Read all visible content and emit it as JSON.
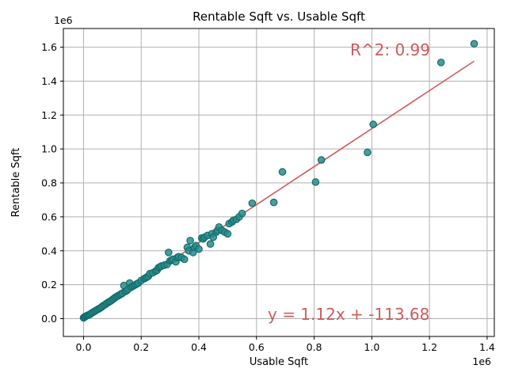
{
  "chart_data": {
    "type": "scatter",
    "title": "Rentable Sqft vs. Usable Sqft",
    "xlabel": "Usable Sqft",
    "ylabel": "Rentable Sqft",
    "x_offset_label": "1e6",
    "y_offset_label": "1e6",
    "xlim": [
      -70000,
      1425000
    ],
    "ylim": [
      -105000,
      1710000
    ],
    "x_ticks": [
      0,
      200000,
      400000,
      600000,
      800000,
      1000000,
      1200000,
      1400000
    ],
    "x_tick_labels": [
      "0.0",
      "0.2",
      "0.4",
      "0.6",
      "0.8",
      "1.0",
      "1.2",
      "1.4"
    ],
    "y_ticks": [
      0,
      200000,
      400000,
      600000,
      800000,
      1000000,
      1200000,
      1400000,
      1600000
    ],
    "y_tick_labels": [
      "0.0",
      "0.2",
      "0.4",
      "0.6",
      "0.8",
      "1.0",
      "1.2",
      "1.4",
      "1.6"
    ],
    "grid": true,
    "colors": {
      "point_fill": "#2e8b8b",
      "point_edge": "#0f6e6e",
      "fit_line": "#cd5c5c",
      "annotation": "#cd5c5c",
      "grid": "#b0b0b0"
    },
    "points": {
      "x": [
        0,
        3000,
        6000,
        9000,
        12000,
        15000,
        18000,
        22000,
        26000,
        30000,
        35000,
        40000,
        45000,
        50000,
        55000,
        60000,
        65000,
        70000,
        75000,
        80000,
        85000,
        90000,
        95000,
        100000,
        105000,
        110000,
        115000,
        120000,
        125000,
        130000,
        135000,
        140000,
        145000,
        150000,
        155000,
        160000,
        165000,
        170000,
        175000,
        180000,
        185000,
        190000,
        200000,
        210000,
        215000,
        220000,
        225000,
        230000,
        240000,
        250000,
        255000,
        260000,
        265000,
        270000,
        280000,
        290000,
        295000,
        300000,
        305000,
        310000,
        320000,
        325000,
        330000,
        340000,
        350000,
        360000,
        365000,
        370000,
        380000,
        385000,
        390000,
        400000,
        410000,
        415000,
        420000,
        430000,
        440000,
        445000,
        450000,
        460000,
        465000,
        470000,
        480000,
        490000,
        500000,
        505000,
        515000,
        520000,
        530000,
        540000,
        550000,
        585000,
        660000,
        690000,
        805000,
        825000,
        985000,
        1005000,
        1240000,
        1355000
      ],
      "y": [
        5000,
        10000,
        12000,
        15000,
        18000,
        20000,
        22000,
        25000,
        30000,
        35000,
        40000,
        45000,
        50000,
        55000,
        60000,
        65000,
        72000,
        78000,
        83000,
        90000,
        95000,
        100000,
        105000,
        112000,
        118000,
        125000,
        130000,
        135000,
        140000,
        145000,
        150000,
        195000,
        160000,
        165000,
        175000,
        210000,
        185000,
        190000,
        195000,
        200000,
        205000,
        210000,
        225000,
        235000,
        240000,
        245000,
        250000,
        265000,
        270000,
        280000,
        285000,
        300000,
        305000,
        310000,
        315000,
        320000,
        390000,
        340000,
        345000,
        350000,
        335000,
        360000,
        365000,
        360000,
        350000,
        420000,
        400000,
        460000,
        390000,
        420000,
        430000,
        410000,
        475000,
        470000,
        480000,
        490000,
        440000,
        500000,
        480000,
        510000,
        520000,
        540000,
        520000,
        510000,
        500000,
        560000,
        570000,
        580000,
        585000,
        600000,
        620000,
        680000,
        685000,
        865000,
        805000,
        935000,
        980000,
        1145000,
        1510000,
        1620000
      ]
    },
    "fit_line": {
      "slope": 1.12,
      "intercept": -113.68,
      "x_range": [
        0,
        1355000
      ]
    },
    "annotations": {
      "r_squared": "R^2: 0.99",
      "equation": "y = 1.12x + -113.68"
    }
  }
}
